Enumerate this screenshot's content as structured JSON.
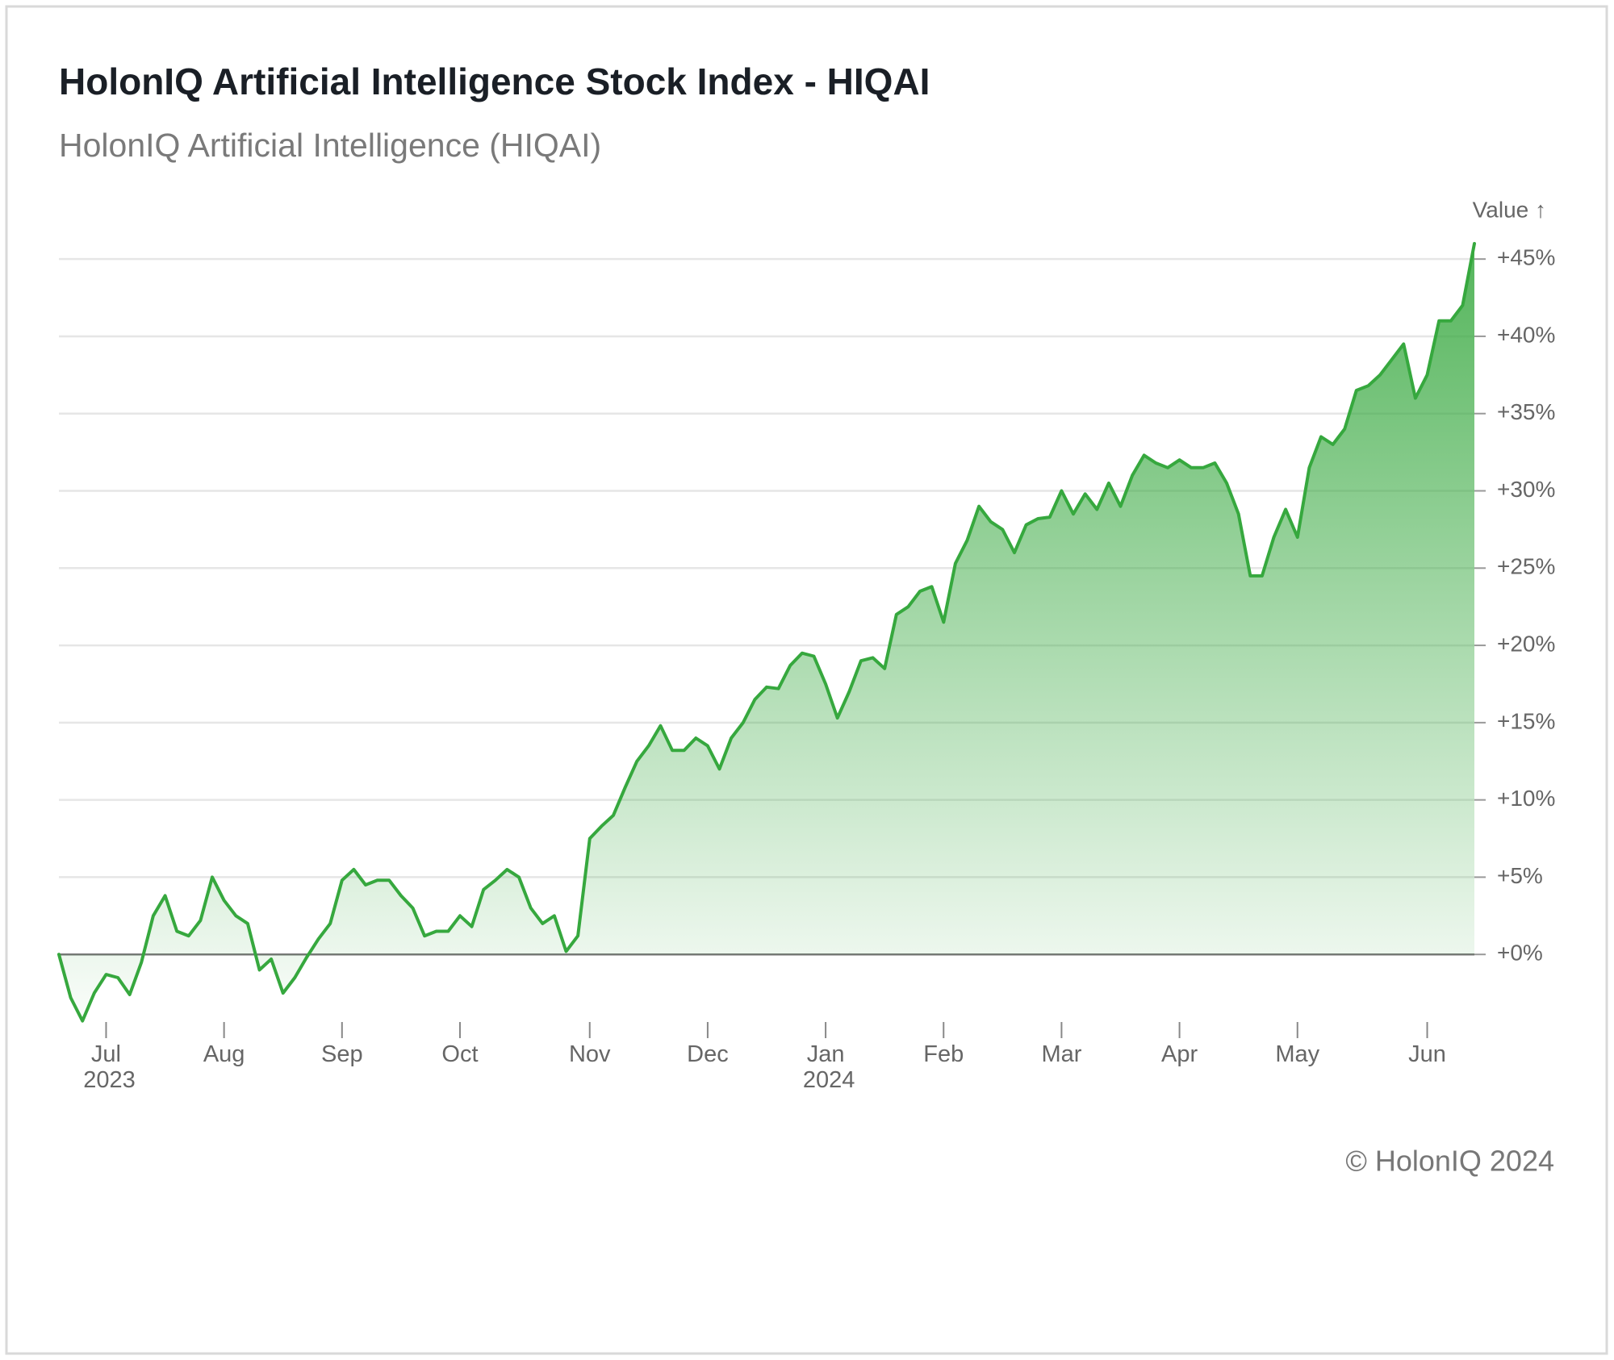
{
  "chart_data": {
    "type": "area",
    "title": "HolonIQ Artificial Intelligence Stock Index - HIQAI",
    "subtitle": "HolonIQ Artificial Intelligence (HIQAI)",
    "y_axis_label": "Value ↑",
    "footer": "© HolonIQ 2024",
    "categories": [
      null,
      null,
      null,
      null,
      "Jul 2023",
      null,
      null,
      null,
      null,
      null,
      null,
      null,
      null,
      null,
      "Aug",
      null,
      null,
      null,
      null,
      null,
      null,
      null,
      null,
      null,
      "Sep",
      null,
      null,
      null,
      null,
      null,
      null,
      null,
      null,
      null,
      "Oct",
      null,
      null,
      null,
      null,
      null,
      null,
      null,
      null,
      null,
      null,
      "Nov",
      null,
      null,
      null,
      null,
      null,
      null,
      null,
      null,
      null,
      "Dec",
      null,
      null,
      null,
      null,
      null,
      null,
      null,
      null,
      null,
      "Jan 2024",
      null,
      null,
      null,
      null,
      null,
      null,
      null,
      null,
      null,
      "Feb",
      null,
      null,
      null,
      null,
      null,
      null,
      null,
      null,
      null,
      "Mar",
      null,
      null,
      null,
      null,
      null,
      null,
      null,
      null,
      null,
      "Apr",
      null,
      null,
      null,
      null,
      null,
      null,
      null,
      null,
      null,
      "May",
      null,
      null,
      null,
      null,
      null,
      null,
      null,
      null,
      null,
      null,
      "Jun",
      null,
      null,
      null,
      null
    ],
    "series": [
      {
        "name": "HIQAI",
        "color": "#36a83e",
        "values": [
          0,
          -2.8,
          -4.3,
          -2.5,
          -1.3,
          -1.5,
          -2.6,
          -0.5,
          2.5,
          3.8,
          1.5,
          1.2,
          2.2,
          5.0,
          3.5,
          2.5,
          2.0,
          -1.0,
          -0.3,
          -2.5,
          -1.5,
          -0.2,
          1.0,
          2.0,
          4.8,
          5.5,
          4.5,
          4.8,
          4.8,
          3.8,
          3.0,
          1.2,
          1.5,
          1.5,
          2.5,
          1.8,
          4.2,
          4.8,
          5.5,
          5.0,
          3.0,
          2.0,
          2.5,
          0.2,
          1.2,
          7.5,
          8.3,
          9.0,
          10.8,
          12.5,
          13.5,
          14.8,
          13.2,
          13.2,
          14.0,
          13.5,
          12.0,
          14.0,
          15.0,
          16.5,
          17.3,
          17.2,
          18.7,
          19.5,
          19.3,
          17.5,
          15.3,
          17.0,
          19.0,
          19.2,
          18.5,
          22.0,
          22.5,
          23.5,
          23.8,
          21.5,
          25.3,
          26.8,
          29.0,
          28.0,
          27.5,
          26.0,
          27.8,
          28.2,
          28.3,
          30.0,
          28.5,
          29.8,
          28.8,
          30.5,
          29.0,
          31.0,
          32.3,
          31.8,
          31.5,
          32.0,
          31.5,
          31.5,
          31.8,
          30.5,
          28.5,
          24.5,
          24.5,
          27.0,
          28.8,
          27.0,
          31.5,
          33.5,
          33.0,
          34.0,
          36.5,
          36.8,
          37.5,
          38.5,
          39.5,
          36.0,
          37.5,
          41.0,
          41.0,
          42.0,
          46.0
        ]
      }
    ],
    "ylim": [
      -5,
      46
    ],
    "yticks": [
      {
        "value": 0,
        "label": "+0%"
      },
      {
        "value": 5,
        "label": "+5%"
      },
      {
        "value": 10,
        "label": "+10%"
      },
      {
        "value": 15,
        "label": "+15%"
      },
      {
        "value": 20,
        "label": "+20%"
      },
      {
        "value": 25,
        "label": "+25%"
      },
      {
        "value": 30,
        "label": "+30%"
      },
      {
        "value": 35,
        "label": "+35%"
      },
      {
        "value": 40,
        "label": "+40%"
      },
      {
        "value": 45,
        "label": "+45%"
      }
    ],
    "grid": true
  }
}
